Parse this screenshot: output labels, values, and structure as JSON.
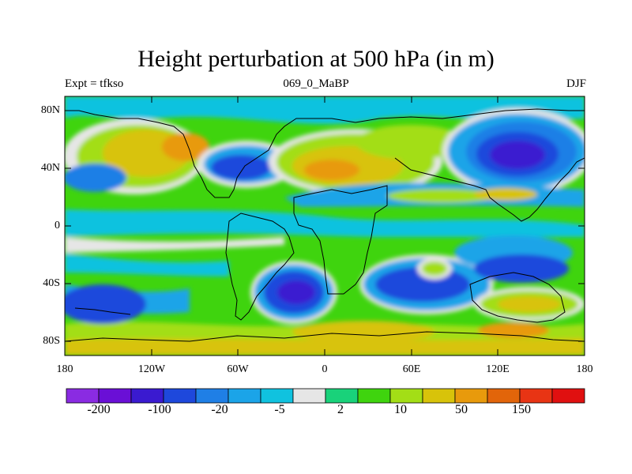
{
  "title": "Height perturbation at 500 hPa (in m)",
  "subtitle_left": "Expt = tfkso",
  "subtitle_center": "069_0_MaBP",
  "subtitle_right": "DJF",
  "lat_labels": [
    "80N",
    "40N",
    "0",
    "40S",
    "80S"
  ],
  "lon_labels": [
    "180",
    "120W",
    "60W",
    "0",
    "60E",
    "120E",
    "180"
  ],
  "colorbar": {
    "colors": [
      "#8a2be2",
      "#6a0fd6",
      "#3a1ad0",
      "#1e48dc",
      "#1f7fe6",
      "#1ba4e8",
      "#10c2df",
      "#e6e6e6",
      "#19d27a",
      "#3fd40e",
      "#a3de16",
      "#d8c30a",
      "#e89a0c",
      "#e2650a",
      "#e83414",
      "#e01010"
    ],
    "labels": [
      "-200",
      "-100",
      "-20",
      "-5",
      "2",
      "10",
      "50",
      "150"
    ]
  },
  "icons": {
    "coastlines": "coastline-outline",
    "field": "contour-fill"
  }
}
